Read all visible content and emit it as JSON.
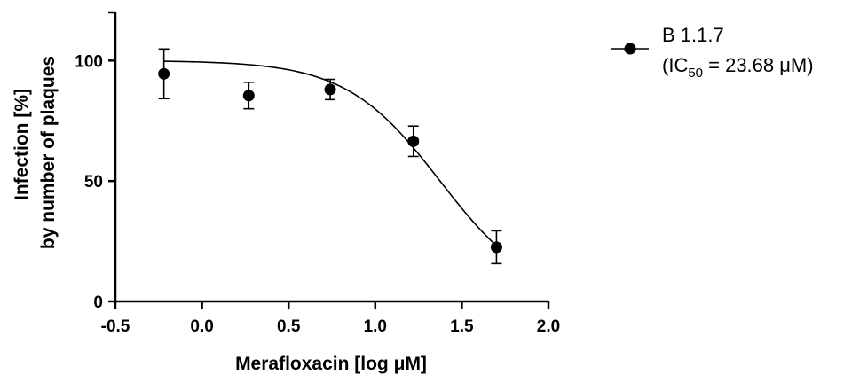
{
  "chart_data": {
    "type": "scatter",
    "xlabel": "Merafloxacin [log μM]",
    "ylabel": [
      "Infection [%]",
      "by number of plaques"
    ],
    "xlim": [
      -0.5,
      2.0
    ],
    "ylim": [
      0,
      120
    ],
    "xticks": [
      "-0.5",
      "0.0",
      "0.5",
      "1.0",
      "1.5",
      "2.0"
    ],
    "yticks": [
      "0",
      "50",
      "100"
    ],
    "grid": false,
    "legend_position": "top-right",
    "series": [
      {
        "name": "B 1.1.7",
        "ic50_label": {
          "prefix": "(IC",
          "sub": "50",
          "suffix": " = 23.68 μM)"
        },
        "color": "#000000",
        "marker": "filled-circle",
        "points": [
          {
            "x": -0.22,
            "y": 94.5,
            "err": 10.3
          },
          {
            "x": 0.27,
            "y": 85.5,
            "err": 5.5
          },
          {
            "x": 0.74,
            "y": 88.0,
            "err": 4.2
          },
          {
            "x": 1.22,
            "y": 66.5,
            "err": 6.3
          },
          {
            "x": 1.7,
            "y": 22.5,
            "err": 6.8
          }
        ],
        "fit": {
          "model": "four-parameter logistic",
          "top": 100,
          "bottom": 0,
          "logIC50": 1.374,
          "hill": -1.6,
          "x_range": [
            -0.22,
            1.7
          ]
        }
      }
    ]
  }
}
